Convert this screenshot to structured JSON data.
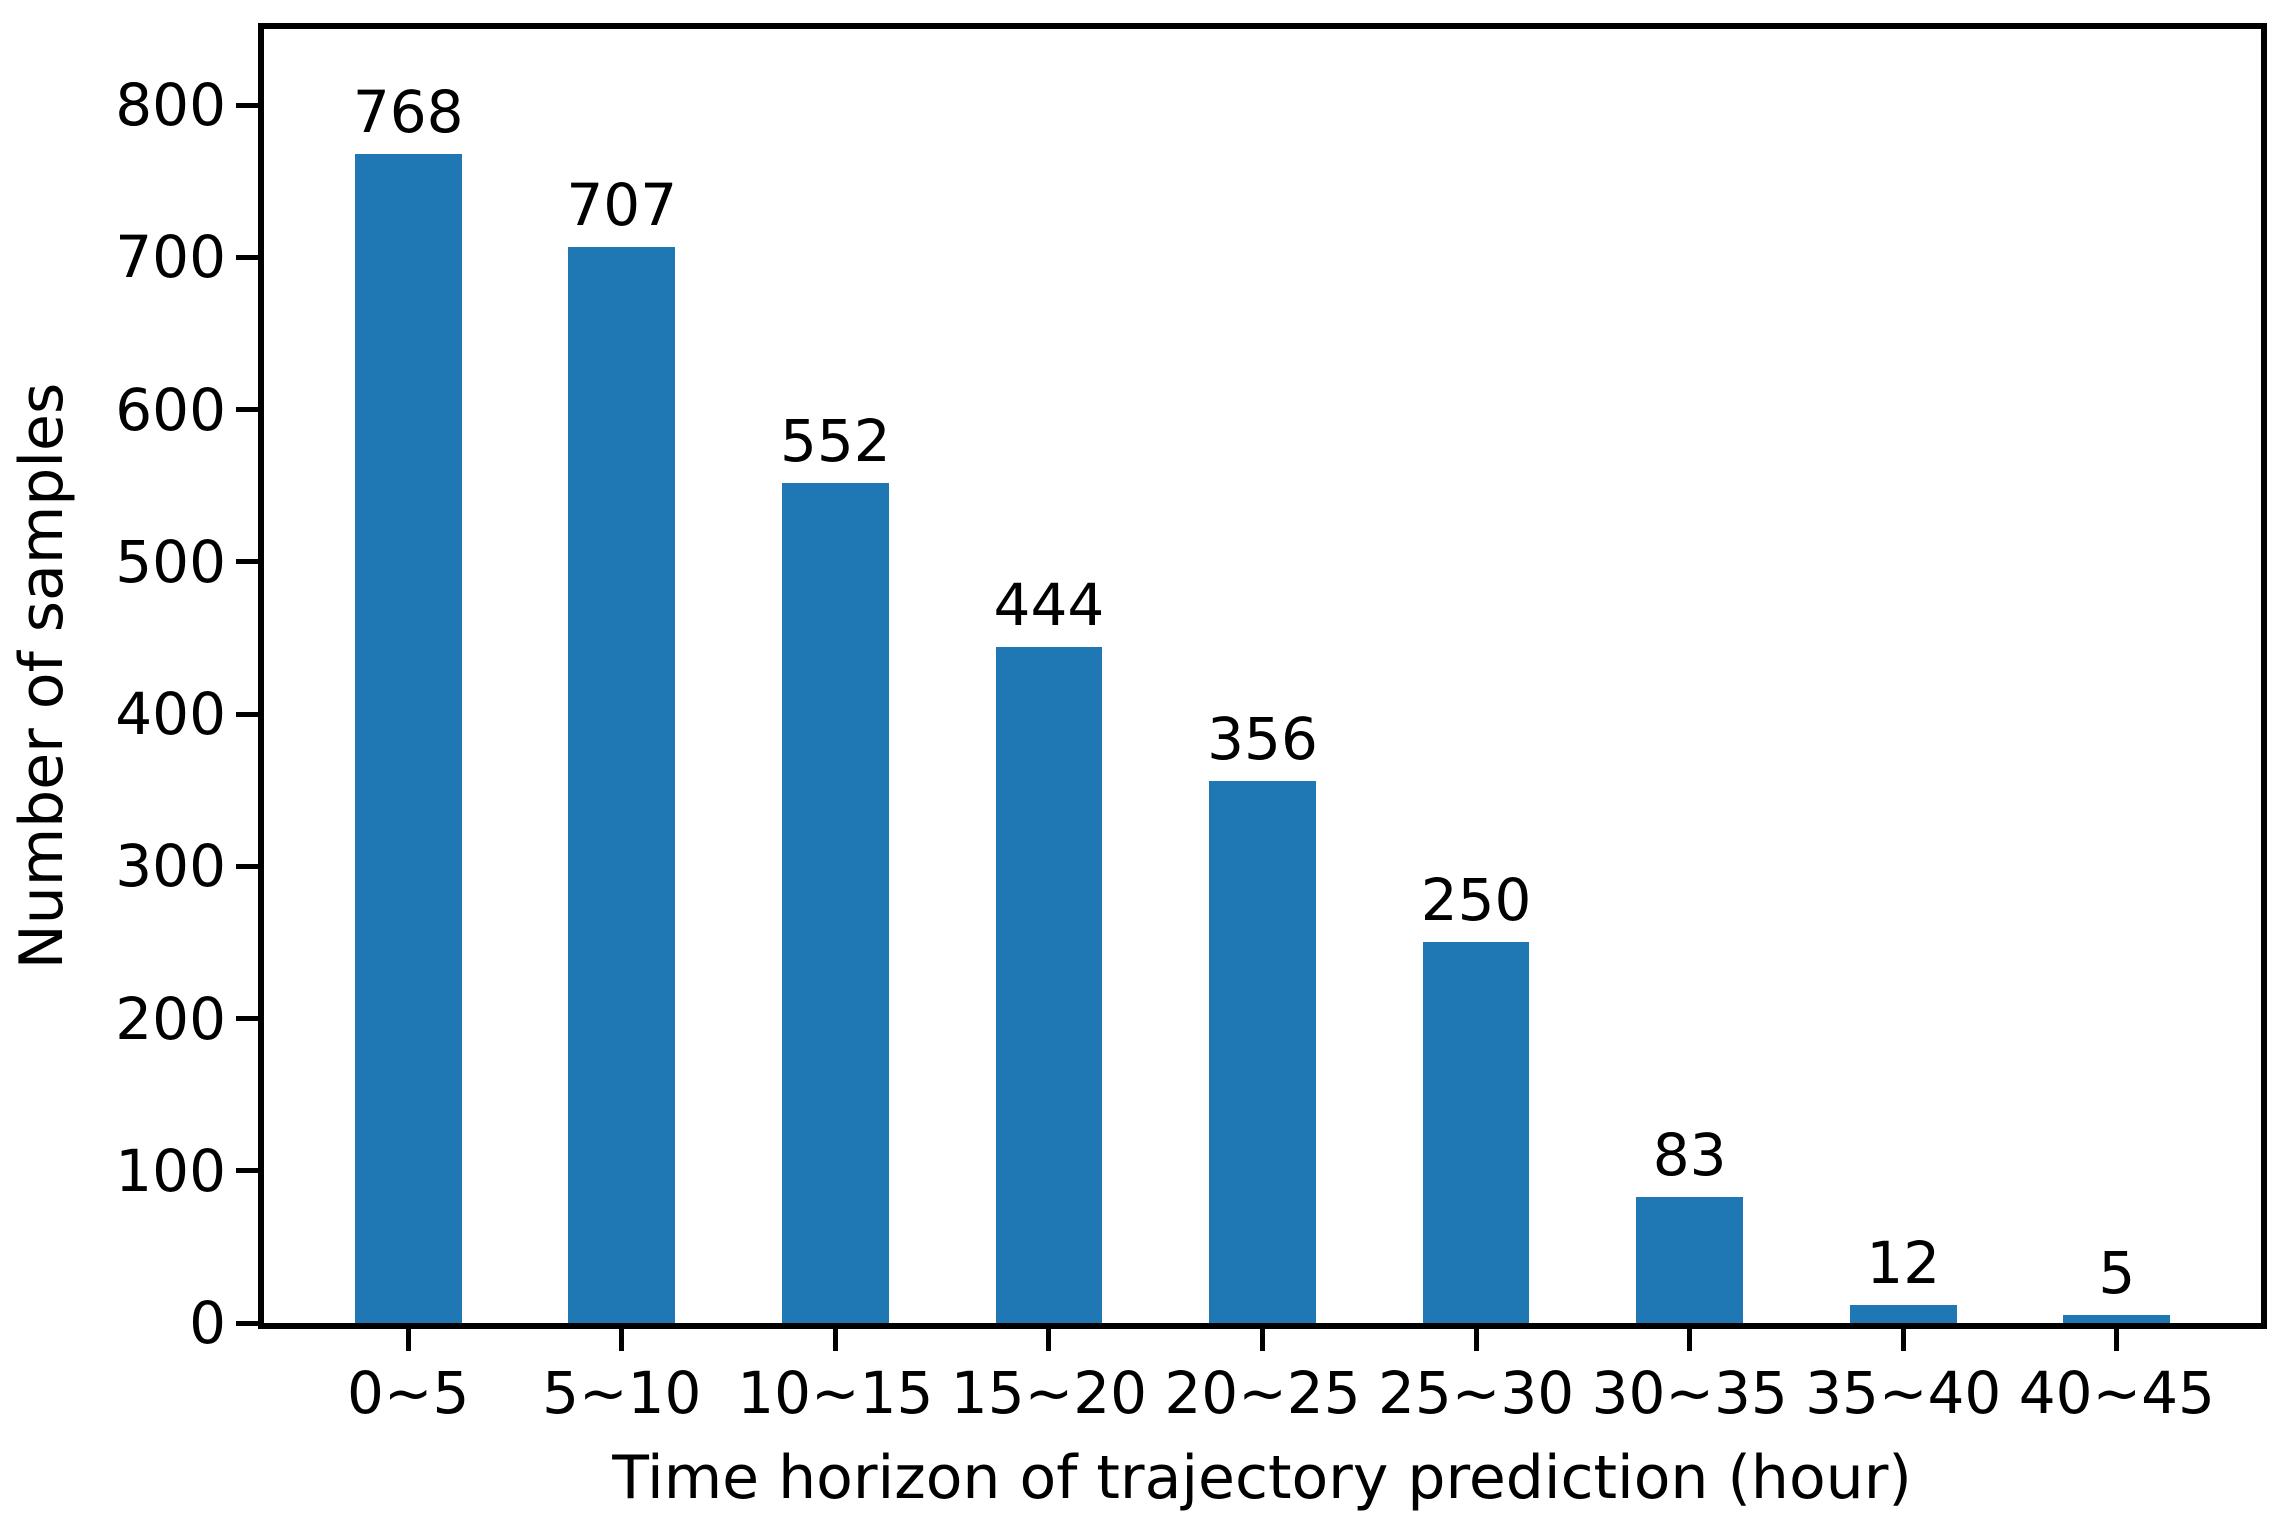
{
  "figure": {
    "background": "#ffffff"
  },
  "chart_data": {
    "type": "bar",
    "categories": [
      "0~5",
      "5~10",
      "10~15",
      "15~20",
      "20~25",
      "25~30",
      "30~35",
      "35~40",
      "40~45"
    ],
    "values": [
      768,
      707,
      552,
      444,
      356,
      250,
      83,
      12,
      5
    ],
    "value_labels": [
      "768",
      "707",
      "552",
      "444",
      "356",
      "250",
      "83",
      "12",
      "5"
    ],
    "title": "",
    "xlabel": "Time horizon of trajectory prediction (hour)",
    "ylabel": "Number of samples",
    "yticks": [
      0,
      100,
      200,
      300,
      400,
      500,
      600,
      700,
      800
    ],
    "ylim": [
      0,
      850
    ],
    "xlim": [
      -0.675,
      8.675
    ],
    "bar_width_units": 0.5,
    "bar_color": "#1f77b4",
    "axis_color": "#000000",
    "text_color": "#000000",
    "grid": false,
    "legend_position": "none"
  }
}
